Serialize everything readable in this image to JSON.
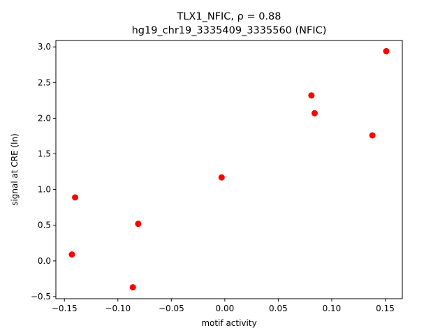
{
  "chart_data": {
    "type": "scatter",
    "title_line1": "TLX1_NFIC, ρ = 0.88",
    "title_line2": "hg19_chr19_3335409_3335560 (NFIC)",
    "xlabel": "motif activity",
    "ylabel": "signal at CRE (ln)",
    "xlim": [
      -0.158,
      0.166
    ],
    "ylim": [
      -0.53,
      3.09
    ],
    "xticks": [
      -0.15,
      -0.1,
      -0.05,
      0.0,
      0.05,
      0.1,
      0.15
    ],
    "xtick_labels": [
      "−0.15",
      "−0.10",
      "−0.05",
      "0.00",
      "0.05",
      "0.10",
      "0.15"
    ],
    "yticks": [
      -0.5,
      0.0,
      0.5,
      1.0,
      1.5,
      2.0,
      2.5,
      3.0
    ],
    "ytick_labels": [
      "−0.5",
      "0.0",
      "0.5",
      "1.0",
      "1.5",
      "2.0",
      "2.5",
      "3.0"
    ],
    "marker_color": "#ff0000",
    "grid": false,
    "points": [
      {
        "x": -0.143,
        "y": 0.09
      },
      {
        "x": -0.14,
        "y": 0.89
      },
      {
        "x": -0.086,
        "y": -0.37
      },
      {
        "x": -0.081,
        "y": 0.52
      },
      {
        "x": -0.003,
        "y": 1.17
      },
      {
        "x": 0.081,
        "y": 2.32
      },
      {
        "x": 0.084,
        "y": 2.07
      },
      {
        "x": 0.138,
        "y": 1.76
      },
      {
        "x": 0.151,
        "y": 2.94
      }
    ]
  }
}
